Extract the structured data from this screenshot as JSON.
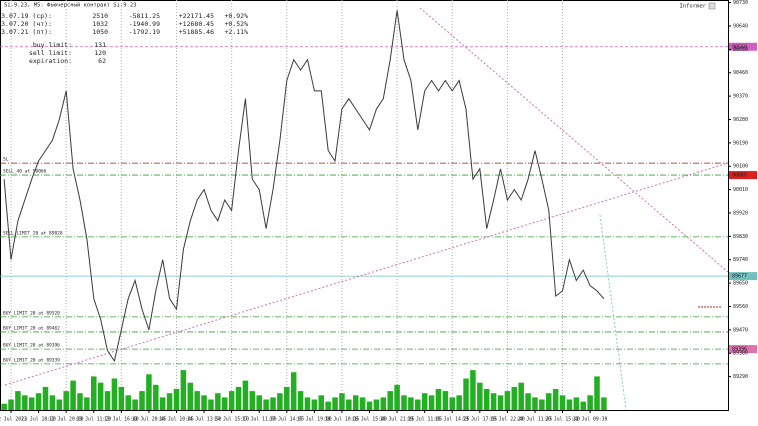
{
  "chart_data": {
    "type": "line",
    "title": "Si-9.23, M5: Фьючерсный контракт Si-9.23",
    "informer": "Informer",
    "color": "#3a3a3a",
    "volume_color": "#22b022",
    "grid": true,
    "x": [
      0,
      1,
      2,
      3,
      4,
      5,
      6,
      7,
      8,
      9,
      10,
      11,
      12,
      13,
      14,
      15,
      16,
      17,
      18,
      19,
      20,
      21,
      22,
      23,
      24,
      25,
      26,
      27,
      28,
      29,
      30,
      31,
      32,
      33,
      34,
      35,
      36,
      37,
      38,
      39,
      40,
      41,
      42,
      43,
      44,
      45,
      46,
      47,
      48,
      49,
      50,
      51,
      52,
      53,
      54,
      55,
      56,
      57,
      58,
      59,
      60,
      61,
      62,
      63,
      64,
      65,
      66,
      67,
      68,
      69,
      70,
      71,
      72,
      73,
      74,
      75,
      76,
      77,
      78,
      79,
      80,
      81,
      82,
      83,
      84,
      85,
      86,
      87
    ],
    "values": [
      90050,
      89740,
      89890,
      89970,
      90050,
      90120,
      90160,
      90200,
      90280,
      90390,
      90090,
      89970,
      89820,
      89590,
      89510,
      89390,
      89350,
      89470,
      89590,
      89660,
      89550,
      89470,
      89620,
      89740,
      89590,
      89550,
      89780,
      89890,
      89970,
      90010,
      89930,
      89890,
      89970,
      89930,
      90160,
      90360,
      90050,
      90010,
      89860,
      90010,
      90200,
      90430,
      90510,
      90470,
      90510,
      90390,
      90390,
      90160,
      90120,
      90320,
      90360,
      90320,
      90280,
      90240,
      90320,
      90360,
      90510,
      90700,
      90510,
      90430,
      90240,
      90390,
      90430,
      90390,
      90430,
      90390,
      90430,
      90320,
      90050,
      90090,
      89860,
      89970,
      90090,
      89970,
      90010,
      89970,
      90050,
      90160,
      90050,
      89930,
      89600,
      89620,
      89740,
      89660,
      89700,
      89640,
      89620,
      89590
    ],
    "volumes": [
      300,
      500,
      900,
      700,
      600,
      800,
      1100,
      700,
      500,
      900,
      1400,
      800,
      600,
      1600,
      1300,
      900,
      1500,
      1100,
      700,
      500,
      900,
      1700,
      1200,
      600,
      800,
      1000,
      1900,
      1300,
      900,
      700,
      500,
      800,
      600,
      900,
      1100,
      1400,
      900,
      700,
      500,
      600,
      800,
      1100,
      1800,
      900,
      600,
      500,
      700,
      400,
      600,
      800,
      500,
      700,
      600,
      400,
      500,
      600,
      900,
      1200,
      700,
      600,
      500,
      800,
      700,
      1000,
      900,
      600,
      700,
      1500,
      1900,
      1300,
      1000,
      800,
      700,
      900,
      1100,
      1300,
      800,
      600,
      500,
      800,
      1000,
      700,
      500,
      600,
      400,
      700,
      1600,
      600
    ],
    "vlim": [
      0,
      2000
    ],
    "xlim": [
      -0.6,
      105
    ],
    "xticks": [
      {
        "value": 1,
        "label": "12 Jul 2023"
      },
      {
        "value": 5,
        "label": "12 Jul 18:20"
      },
      {
        "value": 9,
        "label": "12 Jul 20:00"
      },
      {
        "value": 13,
        "label": "13 Jul 11:20"
      },
      {
        "value": 17,
        "label": "13 Jul 16:40"
      },
      {
        "value": 21,
        "label": "13 Jul 20:45"
      },
      {
        "value": 25,
        "label": "14 Jul 10:45"
      },
      {
        "value": 29,
        "label": "14 Jul 13:50"
      },
      {
        "value": 33,
        "label": "14 Jul 15:10"
      },
      {
        "value": 37,
        "label": "17 Jul 11:00"
      },
      {
        "value": 41,
        "label": "17 Jul 14:05"
      },
      {
        "value": 45,
        "label": "17 Jul 19:00"
      },
      {
        "value": 49,
        "label": "18 Jul 10:15"
      },
      {
        "value": 53,
        "label": "18 Jul 15:40"
      },
      {
        "value": 57,
        "label": "18 Jul 21:05"
      },
      {
        "value": 61,
        "label": "19 Jul 11:05"
      },
      {
        "value": 65,
        "label": "19 Jul 14:25"
      },
      {
        "value": 69,
        "label": "19 Jul 17:05"
      },
      {
        "value": 73,
        "label": "19 Jul 22:40"
      },
      {
        "value": 77,
        "label": "20 Jul 11:05"
      },
      {
        "value": 81,
        "label": "20 Jul 15:40"
      },
      {
        "value": 85,
        "label": "21 Jul 09:30"
      }
    ],
    "ylim": [
      89200,
      90740
    ],
    "yticks": [
      89290,
      89380,
      89470,
      89560,
      89650,
      89740,
      89830,
      89920,
      90010,
      90100,
      90190,
      90280,
      90370,
      90460,
      90550,
      90640,
      90730
    ],
    "levels": [
      {
        "value": 90560,
        "color": "#d060c0",
        "dash": "3,2",
        "box": true
      },
      {
        "value": 90112,
        "color": "#8b2020",
        "dash": "6,2,1,2",
        "label": "SL"
      },
      {
        "value": 90066,
        "color": "#30a030",
        "dash": "6,2,1,2",
        "label": "SELL_40 at 90066",
        "box": true,
        "boxcolor": "#e02020"
      },
      {
        "value": 89828,
        "color": "#30a030",
        "dash": "6,2,1,2",
        "label": "SELL_LIMIT_20 at 89828"
      },
      {
        "value": 89677,
        "color": "#70c0c0",
        "dash": "",
        "box": true
      },
      {
        "value": 89520,
        "color": "#30a030",
        "dash": "6,2,1,2",
        "label": "BUY_LIMIT_20 at 89520"
      },
      {
        "value": 89462,
        "color": "#30a030",
        "dash": "6,2,1,2",
        "label": "BUY_LIMIT_20 at 89462"
      },
      {
        "value": 89396,
        "color": "#30a030",
        "dash": "6,2,1,2",
        "label": "BUY_LIMIT_20 at 89396",
        "box": true,
        "boxcolor": "#e070b0"
      },
      {
        "value": 89339,
        "color": "#30a030",
        "dash": "6,2,1,2",
        "label": "BUY_LIMIT_20 at 89339"
      }
    ]
  },
  "stats": {
    "rows": [
      [
        "2023.07.19 (ср):",
        "2510",
        "-5811.25",
        "+22171.45",
        "+0.92%"
      ],
      [
        "2023.07.20 (чт):",
        "1032",
        "-1940.99",
        "+12680.45",
        "+0.52%"
      ],
      [
        "2023.07.21 (пт):",
        "1050",
        "-1792.19",
        "+51885.46",
        "+2.11%"
      ]
    ],
    "limits": [
      [
        "buy limit:",
        "131"
      ],
      [
        "sell limit:",
        "120"
      ],
      [
        "expiration:",
        "62"
      ]
    ]
  }
}
